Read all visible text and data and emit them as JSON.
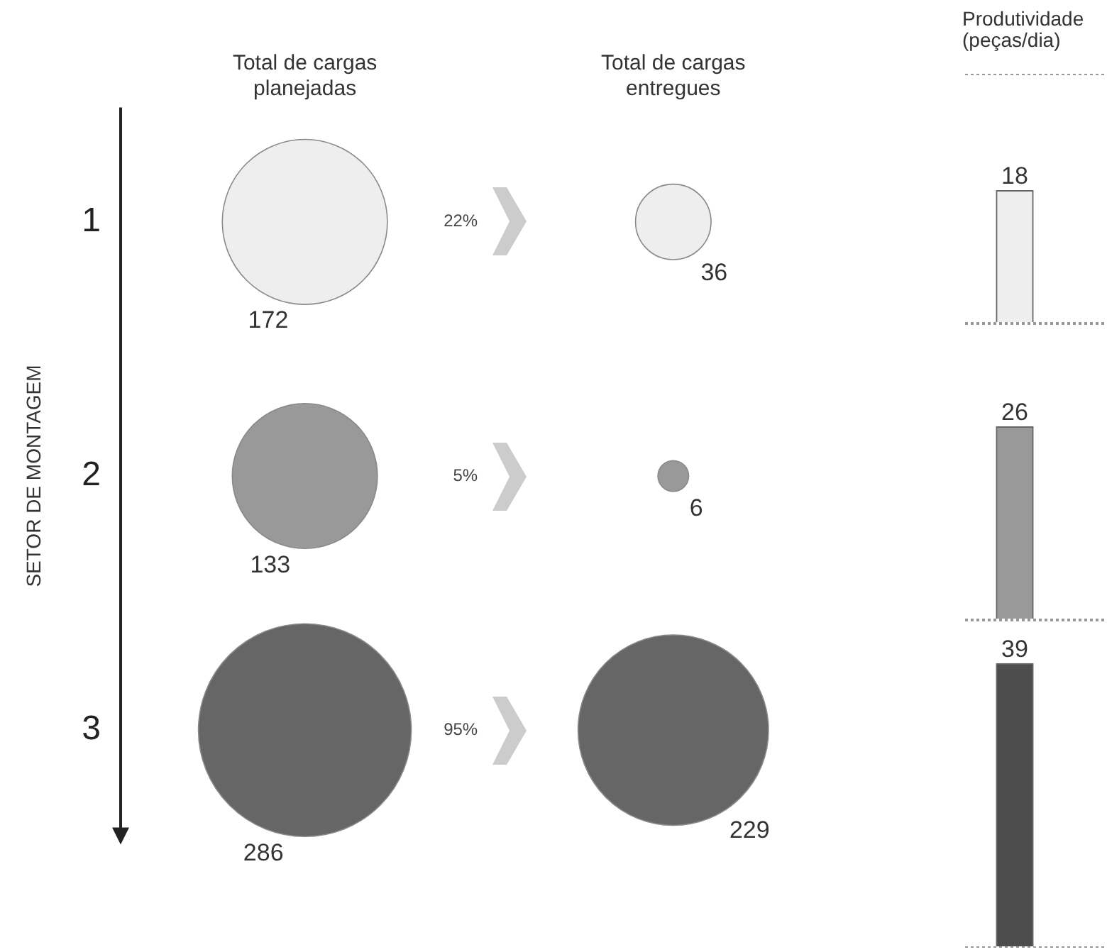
{
  "chart_data": [
    {
      "type": "bubble",
      "ylabel": "SETOR DE MONTAGEM",
      "categories": [
        "Total de cargas planejadas",
        "Total de cargas entregues"
      ],
      "series": [
        {
          "color": "#eeeeee",
          "values": [
            1,
            1
          ],
          "sizes": [
            172,
            36
          ],
          "value_labels": [
            "172",
            "36"
          ]
        },
        {
          "color": "#999999",
          "values": [
            2,
            2
          ],
          "sizes": [
            133,
            6
          ],
          "value_labels": [
            "133",
            "6"
          ]
        },
        {
          "color": "#666666",
          "values": [
            3,
            3
          ],
          "sizes": [
            286,
            229
          ],
          "value_labels": [
            "286",
            "229"
          ]
        }
      ],
      "ylim": [
        3.45,
        0.55
      ],
      "yticks": [
        1,
        2,
        3
      ],
      "annotations": [
        "22%",
        "5%",
        "95%"
      ]
    },
    {
      "type": "bar",
      "title": "Produtividade (peças/dia)",
      "categories": [
        null
      ],
      "values": [
        18
      ],
      "color": "#eeeeee",
      "ylim": [
        0,
        34
      ],
      "data_labels": true
    },
    {
      "type": "bar",
      "categories": [
        null
      ],
      "values": [
        26
      ],
      "color": "#999999",
      "ylim": [
        0,
        40
      ],
      "data_labels": true
    },
    {
      "type": "bar",
      "categories": [
        null
      ],
      "values": [
        39
      ],
      "color": "#4d4d4d",
      "ylim": [
        0,
        45
      ],
      "data_labels": true
    }
  ]
}
